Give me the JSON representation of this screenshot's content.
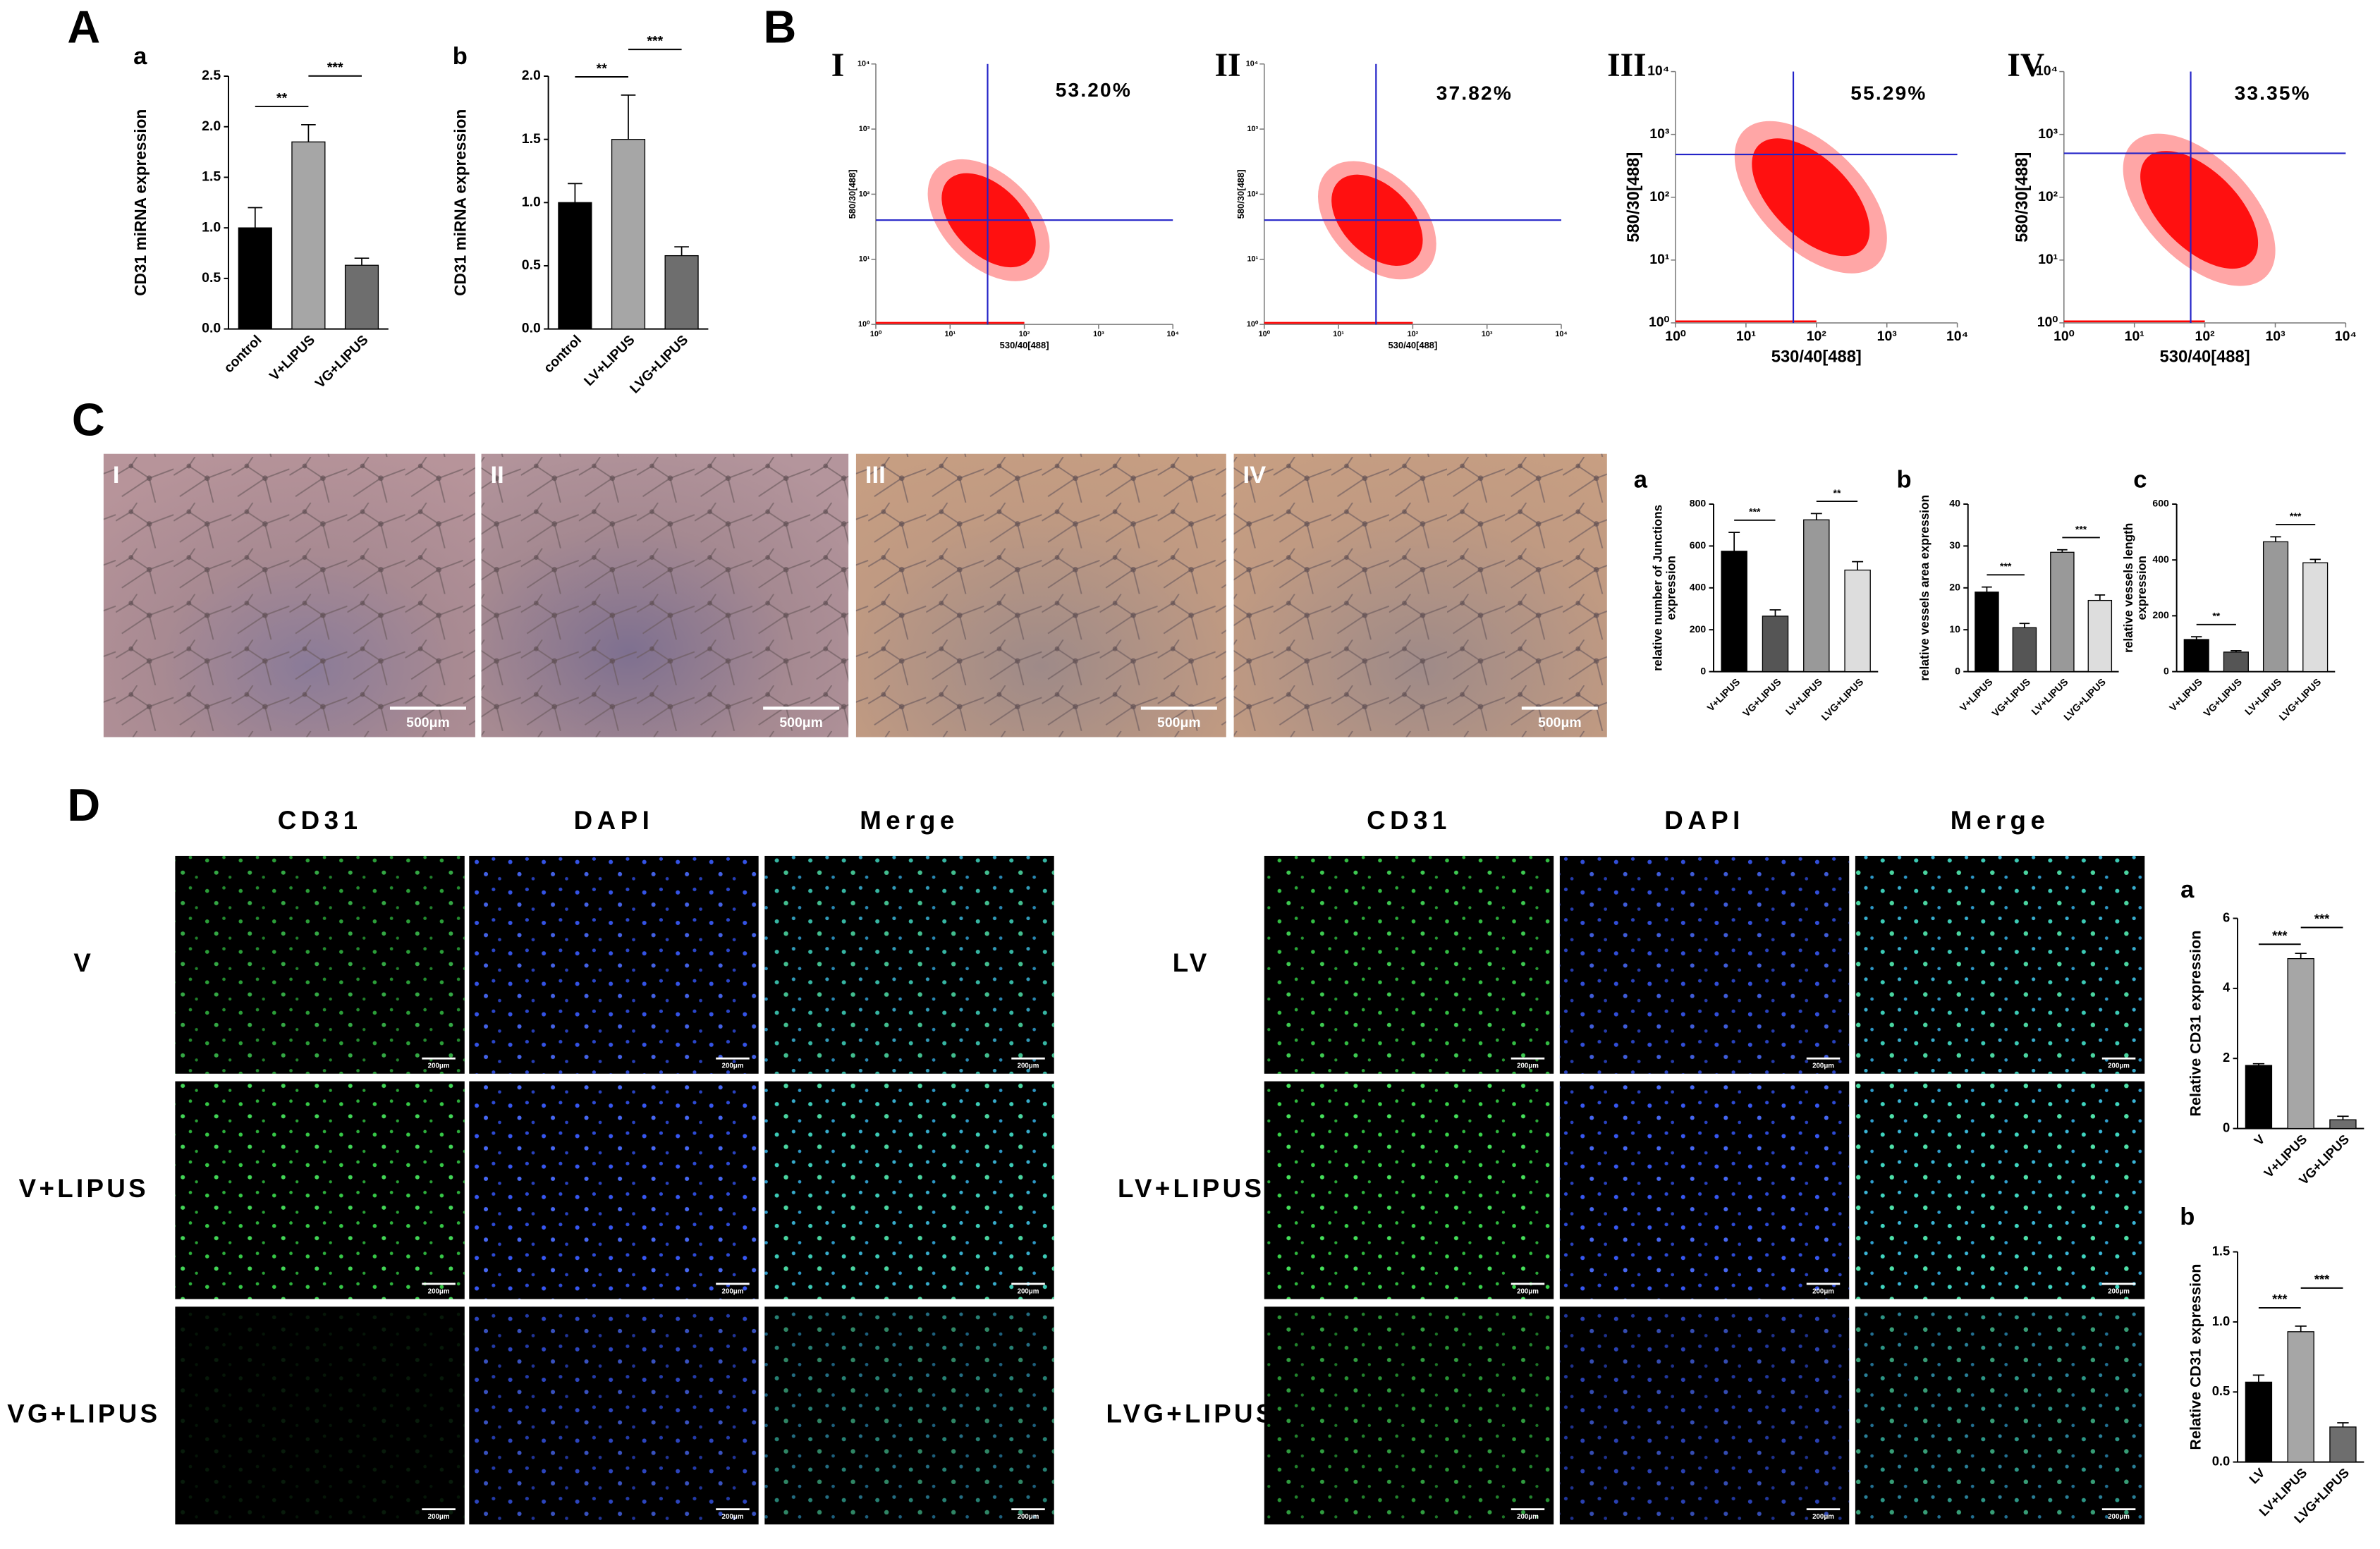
{
  "figure": {
    "panel_labels": [
      "A",
      "B",
      "C",
      "D"
    ],
    "tube_formation": {
      "image_labels": [
        "I",
        "II",
        "III",
        "IV"
      ],
      "scale_bar": "500μm"
    },
    "immunofluorescence": {
      "channels": [
        "CD31",
        "DAPI",
        "Merge"
      ],
      "groups_left": [
        "V",
        "V+LIPUS",
        "VG+LIPUS"
      ],
      "groups_right": [
        "LV",
        "LV+LIPUS",
        "LVG+LIPUS"
      ],
      "scale_bar": "200μm"
    }
  },
  "chart_data": [
    {
      "type": "bar",
      "label": "a",
      "y_label": "CD31 miRNA expression",
      "categories": [
        "control",
        "V+LIPUS",
        "VG+LIPUS"
      ],
      "values": [
        1.0,
        1.85,
        0.63
      ],
      "errors": [
        0.2,
        0.17,
        0.07
      ],
      "colors": [
        "#000000",
        "#a6a6a6",
        "#6e6e6e"
      ],
      "ylim": [
        0,
        2.5
      ],
      "yticks": [
        {
          "value": 0,
          "label": "0.0"
        },
        0.5,
        {
          "value": 1,
          "label": "1.0"
        },
        1.5,
        {
          "value": 2,
          "label": "2.0"
        },
        2.5
      ],
      "annotations": [
        "**",
        "***"
      ]
    },
    {
      "type": "bar",
      "label": "b",
      "y_label": "CD31 miRNA expression",
      "categories": [
        "control",
        "LV+LIPUS",
        "LVG+LIPUS"
      ],
      "values": [
        1.0,
        1.5,
        0.58
      ],
      "errors": [
        0.15,
        0.35,
        0.07
      ],
      "colors": [
        "#000000",
        "#a6a6a6",
        "#6e6e6e"
      ],
      "ylim": [
        0,
        2.0
      ],
      "yticks": [
        {
          "value": 0,
          "label": "0.0"
        },
        0.5,
        {
          "value": 1,
          "label": "1.0"
        },
        1.5,
        {
          "value": 2,
          "label": "2.0"
        }
      ],
      "annotations": [
        "**",
        "***"
      ]
    },
    {
      "type": "flow",
      "label": "I",
      "x_label": "530/40[488]",
      "y_label": "580/30[488]",
      "values": [
        53.2
      ],
      "value_labels": [
        "53.20%"
      ],
      "log_scale": true,
      "xlim": [
        1,
        10000
      ],
      "ylim": [
        1,
        10000
      ],
      "xticks": [
        {
          "value": 1,
          "label": "10⁰"
        },
        {
          "value": 10,
          "label": "10¹"
        },
        {
          "value": 100,
          "label": "10²"
        },
        {
          "value": 1000,
          "label": "10³"
        },
        {
          "value": 10000,
          "label": "10⁴"
        }
      ],
      "yticks": [
        {
          "value": 1,
          "label": "10⁰"
        },
        {
          "value": 10,
          "label": "10¹"
        },
        {
          "value": 100,
          "label": "10²"
        },
        {
          "value": 1000,
          "label": "10³"
        },
        {
          "value": 10000,
          "label": "10⁴"
        }
      ],
      "gate": [
        32,
        40
      ],
      "color": "#ff0000",
      "gate_color": "#2323c8"
    },
    {
      "type": "flow",
      "label": "II",
      "x_label": "530/40[488]",
      "y_label": "580/30[488]",
      "values": [
        37.82
      ],
      "value_labels": [
        "37.82%"
      ],
      "log_scale": true,
      "xlim": [
        1,
        10000
      ],
      "ylim": [
        1,
        10000
      ],
      "xticks": [
        {
          "value": 1,
          "label": "10⁰"
        },
        {
          "value": 10,
          "label": "10¹"
        },
        {
          "value": 100,
          "label": "10²"
        },
        {
          "value": 1000,
          "label": "10³"
        },
        {
          "value": 10000,
          "label": "10⁴"
        }
      ],
      "yticks": [
        {
          "value": 1,
          "label": "10⁰"
        },
        {
          "value": 10,
          "label": "10¹"
        },
        {
          "value": 100,
          "label": "10²"
        },
        {
          "value": 1000,
          "label": "10³"
        },
        {
          "value": 10000,
          "label": "10⁴"
        }
      ],
      "gate": [
        32,
        40
      ],
      "color": "#ff0000",
      "gate_color": "#2323c8"
    },
    {
      "type": "flow",
      "label": "III",
      "x_label": "530/40[488]",
      "y_label": "580/30[488]",
      "values": [
        55.29
      ],
      "value_labels": [
        "55.29%"
      ],
      "log_scale": true,
      "xlim": [
        1,
        10000
      ],
      "ylim": [
        1,
        10000
      ],
      "xticks": [
        {
          "value": 1,
          "label": "10⁰"
        },
        {
          "value": 10,
          "label": "10¹"
        },
        {
          "value": 100,
          "label": "10²"
        },
        {
          "value": 1000,
          "label": "10³"
        },
        {
          "value": 10000,
          "label": "10⁴"
        }
      ],
      "yticks": [
        {
          "value": 1,
          "label": "10⁰"
        },
        {
          "value": 10,
          "label": "10¹"
        },
        {
          "value": 100,
          "label": "10²"
        },
        {
          "value": 1000,
          "label": "10³"
        },
        {
          "value": 10000,
          "label": "10⁴"
        }
      ],
      "gate": [
        47,
        480
      ],
      "color": "#ff0000",
      "gate_color": "#2323c8"
    },
    {
      "type": "flow",
      "label": "IV",
      "x_label": "530/40[488]",
      "y_label": "580/30[488]",
      "values": [
        33.35
      ],
      "value_labels": [
        "33.35%"
      ],
      "log_scale": true,
      "xlim": [
        1,
        10000
      ],
      "ylim": [
        1,
        10000
      ],
      "xticks": [
        {
          "value": 1,
          "label": "10⁰"
        },
        {
          "value": 10,
          "label": "10¹"
        },
        {
          "value": 100,
          "label": "10²"
        },
        {
          "value": 1000,
          "label": "10³"
        },
        {
          "value": 10000,
          "label": "10⁴"
        }
      ],
      "yticks": [
        {
          "value": 1,
          "label": "10⁰"
        },
        {
          "value": 10,
          "label": "10¹"
        },
        {
          "value": 100,
          "label": "10²"
        },
        {
          "value": 1000,
          "label": "10³"
        },
        {
          "value": 10000,
          "label": "10⁴"
        }
      ],
      "gate": [
        63,
        500
      ],
      "color": "#ff0000",
      "gate_color": "#2323c8"
    },
    {
      "type": "bar",
      "label": "a",
      "y_label": "relative number of Junctions\nexpression",
      "categories": [
        "V+LIPUS",
        "VG+LIPUS",
        "LV+LIPUS",
        "LVG+LIPUS"
      ],
      "values": [
        575,
        265,
        725,
        485
      ],
      "errors": [
        90,
        30,
        30,
        40
      ],
      "colors": [
        "#000000",
        "#555555",
        "#999999",
        "#dddddd"
      ],
      "ylim": [
        0,
        800
      ],
      "yticks": [
        0,
        200,
        400,
        600,
        800
      ],
      "annotations": [
        "***",
        "**"
      ]
    },
    {
      "type": "bar",
      "label": "b",
      "y_label": "relative vessels area expression",
      "categories": [
        "V+LIPUS",
        "VG+LIPUS",
        "LV+LIPUS",
        "LVG+LIPUS"
      ],
      "values": [
        19,
        10.5,
        28.5,
        17
      ],
      "errors": [
        1.2,
        1.0,
        0.6,
        1.3
      ],
      "colors": [
        "#000000",
        "#555555",
        "#999999",
        "#dddddd"
      ],
      "ylim": [
        0,
        40
      ],
      "yticks": [
        0,
        10,
        20,
        30,
        40
      ],
      "annotations": [
        "***",
        "***"
      ]
    },
    {
      "type": "bar",
      "label": "c",
      "y_label": "relative vessels  length\nexpression",
      "categories": [
        "V+LIPUS",
        "VG+LIPUS",
        "LV+LIPUS",
        "LVG+LIPUS"
      ],
      "values": [
        115,
        70,
        465,
        390
      ],
      "errors": [
        10,
        5,
        18,
        12
      ],
      "colors": [
        "#000000",
        "#555555",
        "#999999",
        "#dddddd"
      ],
      "ylim": [
        0,
        600
      ],
      "yticks": [
        0,
        200,
        400,
        600
      ],
      "annotations": [
        "**",
        "***"
      ]
    },
    {
      "type": "bar",
      "label": "a",
      "y_label": "Relative CD31  expression",
      "categories": [
        "V",
        "V+LIPUS",
        "VG+LIPUS"
      ],
      "values": [
        1.8,
        4.85,
        0.25
      ],
      "errors": [
        0.05,
        0.15,
        0.1
      ],
      "colors": [
        "#000000",
        "#a6a6a6",
        "#6e6e6e"
      ],
      "ylim": [
        0,
        6
      ],
      "yticks": [
        0,
        2,
        4,
        6
      ],
      "annotations": [
        "***",
        "***"
      ]
    },
    {
      "type": "bar",
      "label": "b",
      "y_label": "Relative CD31  expression",
      "categories": [
        "LV",
        "LV+LIPUS",
        "LVG+LIPUS"
      ],
      "values": [
        0.57,
        0.93,
        0.25
      ],
      "errors": [
        0.05,
        0.04,
        0.03
      ],
      "colors": [
        "#000000",
        "#a6a6a6",
        "#6e6e6e"
      ],
      "ylim": [
        0,
        1.5
      ],
      "yticks": [
        {
          "value": 0,
          "label": "0.0"
        },
        0.5,
        {
          "value": 1,
          "label": "1.0"
        },
        1.5
      ],
      "annotations": [
        "***",
        "***"
      ]
    }
  ]
}
